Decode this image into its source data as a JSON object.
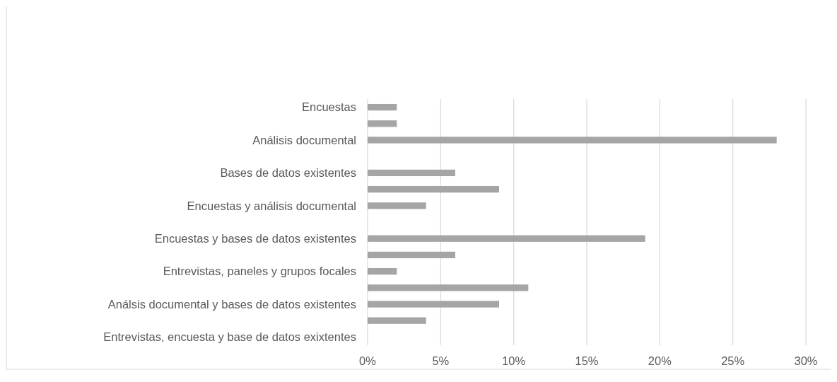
{
  "chart_data": {
    "type": "bar",
    "orientation": "horizontal",
    "categories": [
      "Encuestas",
      null,
      "Análisis documental",
      null,
      "Bases de datos existentes",
      null,
      "Encuestas y análisis documental",
      null,
      "Encuestas y bases de datos existentes",
      null,
      "Entrevistas, paneles y grupos focales",
      null,
      "Análsis documental y bases de datos existentes",
      null,
      "Entrevistas, encuesta y base de datos exixtentes"
    ],
    "values": [
      2,
      2,
      28,
      null,
      6,
      9,
      4,
      null,
      19,
      6,
      2,
      11,
      9,
      4,
      null
    ],
    "color": "#a5a5a5",
    "xlim": [
      0,
      30
    ],
    "xticks": [
      {
        "value": 0,
        "label": "0%"
      },
      {
        "value": 5,
        "label": "5%"
      },
      {
        "value": 10,
        "label": "10%"
      },
      {
        "value": 15,
        "label": "15%"
      },
      {
        "value": 20,
        "label": "20%"
      },
      {
        "value": 25,
        "label": "25%"
      },
      {
        "value": 30,
        "label": "30%"
      }
    ],
    "grid": "x"
  }
}
